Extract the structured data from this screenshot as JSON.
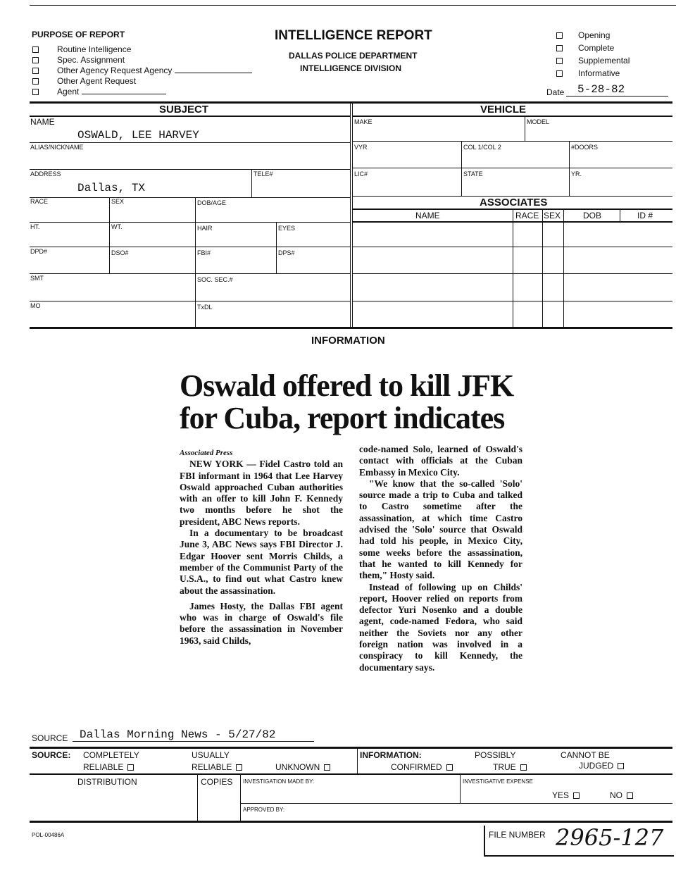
{
  "header": {
    "purpose_title": "PURPOSE OF REPORT",
    "purpose_options": [
      "Routine Intelligence",
      "Spec. Assignment",
      "Other Agency Request Agency",
      "Other Agent Request",
      "Agent"
    ],
    "title": "INTELLIGENCE REPORT",
    "department": "DALLAS POLICE DEPARTMENT",
    "division": "INTELLIGENCE DIVISION",
    "status_options": [
      "Opening",
      "Complete",
      "Supplemental",
      "Informative"
    ],
    "date_label": "Date",
    "date_value": "5-28-82"
  },
  "subject": {
    "heading": "SUBJECT",
    "name_label": "NAME",
    "name_value": "OSWALD, LEE HARVEY",
    "alias_label": "ALIAS/NICKNAME",
    "address_label": "ADDRESS",
    "address_value": "Dallas, TX",
    "tele_label": "TELE#",
    "race_label": "RACE",
    "sex_label": "SEX",
    "dob_label": "DOB/AGE",
    "ht_label": "HT.",
    "wt_label": "WT.",
    "hair_label": "HAIR",
    "eyes_label": "EYES",
    "dpd_label": "DPD#",
    "dso_label": "DSO#",
    "fbi_label": "FBI#",
    "dps_label": "DPS#",
    "smt_label": "SMT",
    "soc_label": "SOC. SEC.#",
    "mo_label": "MO",
    "txdl_label": "TxDL"
  },
  "vehicle": {
    "heading": "VEHICLE",
    "make_label": "MAKE",
    "model_label": "MODEL",
    "vyr_label": "VYR",
    "col_label": "COL 1/COL 2",
    "doors_label": "#DOORS",
    "lic_label": "LIC#",
    "state_label": "STATE",
    "yr_label": "YR."
  },
  "associates": {
    "heading": "ASSOCIATES",
    "columns": [
      "NAME",
      "RACE",
      "SEX",
      "DOB",
      "ID #"
    ]
  },
  "information": {
    "heading": "INFORMATION",
    "article": {
      "headline": "Oswald offered to kill JFK for Cuba, report indicates",
      "byline": "Associated Press",
      "col1": [
        "NEW YORK — Fidel Castro told an FBI informant in 1964 that Lee Harvey Oswald approached Cuban authorities with an offer to kill John F. Kennedy two months before he shot the president, ABC News reports.",
        "In a documentary to be broadcast June 3, ABC News says FBI Director J. Edgar Hoover sent Morris Childs, a member of the Communist Party of the U.S.A., to find out what Castro knew about the assassination.",
        "James Hosty, the Dallas FBI agent who was in charge of Oswald's file before the assassination in November 1963, said Childs,"
      ],
      "col2": [
        "code-named Solo, learned of Oswald's contact with officials at the Cuban Embassy in Mexico City.",
        "\"We know that the so-called 'Solo' source made a trip to Cuba and talked to Castro sometime after the assassination, at which time Castro advised the 'Solo' source that Oswald had told his people, in Mexico City, some weeks before the assassination, that he wanted to kill Kennedy for them,\" Hosty said.",
        "Instead of following up on Childs' report, Hoover relied on reports from defector Yuri Nosenko and a double agent, code-named Fedora, who said neither the Soviets nor any other foreign nation was involved in a conspiracy to kill Kennedy, the documentary says."
      ]
    }
  },
  "source": {
    "label": "SOURCE",
    "value": "Dallas Morning News - 5/27/82"
  },
  "footer": {
    "source_label": "SOURCE:",
    "completely": "COMPLETELY",
    "reliable1": "RELIABLE",
    "usually": "USUALLY",
    "reliable2": "RELIABLE",
    "unknown": "UNKNOWN",
    "information_label": "INFORMATION:",
    "confirmed": "CONFIRMED",
    "possibly": "POSSIBLY",
    "true": "TRUE",
    "cannot_be": "CANNOT BE",
    "judged": "JUDGED",
    "distribution": "DISTRIBUTION",
    "copies": "COPIES",
    "investigation_made_by": "INVESTIGATION MADE BY:",
    "investigative_expense": "INVESTIGATIVE EXPENSE",
    "yes": "YES",
    "no": "NO",
    "approved_by": "APPROVED BY:",
    "form_number": "POL-00486A",
    "file_number_label": "FILE NUMBER",
    "file_number_value": "2965-127"
  }
}
